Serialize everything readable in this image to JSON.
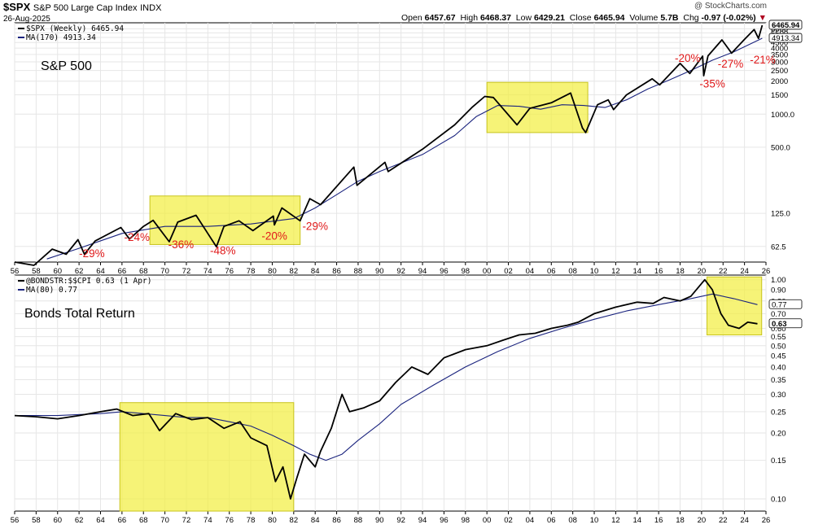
{
  "header": {
    "symbol": "$SPX",
    "name": "S&P 500 Large Cap Index",
    "exchange": "INDX",
    "date": "26-Aug-2025",
    "credit": "@ StockCharts.com",
    "ohlc": [
      {
        "label": "Open",
        "value": "6457.67"
      },
      {
        "label": "High",
        "value": "6468.37"
      },
      {
        "label": "Low",
        "value": "6429.21"
      },
      {
        "label": "Close",
        "value": "6465.94"
      },
      {
        "label": "Volume",
        "value": "5.7B"
      },
      {
        "label": "Chg",
        "value": "-0.97 (-0.02%)"
      }
    ],
    "chg_arrow": "▼",
    "colors": {
      "down": "#b00020"
    }
  },
  "chart_data": [
    {
      "type": "line",
      "title": "S&P 500",
      "legend": [
        "$SPX (Weekly) 6465.94",
        "MA(170) 4913.34"
      ],
      "scale": "log",
      "ylim": [
        45,
        6800
      ],
      "x_range": [
        1956,
        2026
      ],
      "x_tick_labels": [
        "56",
        "58",
        "60",
        "62",
        "64",
        "66",
        "68",
        "70",
        "72",
        "74",
        "76",
        "78",
        "80",
        "82",
        "84",
        "86",
        "88",
        "90",
        "92",
        "94",
        "96",
        "98",
        "00",
        "02",
        "04",
        "06",
        "08",
        "10",
        "12",
        "14",
        "16",
        "18",
        "20",
        "22",
        "24",
        "26"
      ],
      "y_ticks": [
        62.5,
        125,
        500,
        1000,
        1500,
        2000,
        2500,
        3000,
        3500,
        4000,
        4500,
        5000,
        5500,
        6000
      ],
      "y_tick_labels": [
        "62.5",
        "125.0",
        "500.0",
        "1000.0",
        "1500",
        "2000",
        "2500",
        "3000",
        "3500",
        "4000",
        "4500",
        "5000",
        "5500",
        "6000"
      ],
      "last_labels": [
        "6465.94",
        "4913.34"
      ],
      "series": [
        {
          "name": "$SPX (Weekly)",
          "color": "#000000",
          "x": [
            1956,
            1957.8,
            1959.5,
            1960.8,
            1961.9,
            1962.5,
            1963.5,
            1965.9,
            1966.7,
            1968.0,
            1968.9,
            1970.4,
            1971.2,
            1972.9,
            1974.8,
            1975.5,
            1976.9,
            1978.2,
            1980.1,
            1980.2,
            1980.9,
            1982.6,
            1983.5,
            1984.5,
            1987.6,
            1987.9,
            1990.5,
            1990.8,
            1994.0,
            1997.0,
            1998.6,
            1999.8,
            2000.6,
            2002.8,
            2004.0,
            2006.0,
            2007.8,
            2008.9,
            2009.2,
            2010.3,
            2011.3,
            2011.8,
            2013.0,
            2015.4,
            2016.1,
            2018.0,
            2018.9,
            2020.1,
            2020.2,
            2020.6,
            2021.9,
            2022.8,
            2024.0,
            2024.9,
            2025.3,
            2025.65
          ],
          "values": [
            45,
            42,
            59,
            53,
            72,
            53,
            70,
            93,
            73,
            95,
            108,
            69,
            104,
            120,
            62,
            95,
            107,
            87,
            118,
            98,
            140,
            107,
            170,
            150,
            330,
            225,
            365,
            300,
            480,
            800,
            1150,
            1450,
            1420,
            800,
            1130,
            1270,
            1560,
            750,
            680,
            1220,
            1350,
            1100,
            1500,
            2100,
            1850,
            2900,
            2350,
            3380,
            2240,
            3400,
            4750,
            3600,
            4800,
            5900,
            4900,
            6465.94
          ]
        },
        {
          "name": "MA(170)",
          "color": "#1a237e",
          "x": [
            1959,
            1962,
            1966,
            1970,
            1974,
            1978,
            1982,
            1984,
            1986,
            1988,
            1990,
            1994,
            1997,
            1999,
            2001,
            2003,
            2005,
            2007,
            2009,
            2011,
            2013,
            2015,
            2017,
            2019,
            2021,
            2023,
            2025.65
          ],
          "values": [
            48,
            60,
            82,
            95,
            95,
            100,
            112,
            140,
            185,
            245,
            300,
            430,
            640,
            950,
            1200,
            1180,
            1110,
            1220,
            1200,
            1150,
            1350,
            1700,
            2050,
            2500,
            3100,
            3700,
            4913.34
          ]
        }
      ],
      "highlights": [
        {
          "x_start": 1968.6,
          "x_end": 1982.6,
          "y_top": 180,
          "y_bottom": 65
        },
        {
          "x_start": 2000.0,
          "x_end": 2009.4,
          "y_top": 1950,
          "y_bottom": 680
        }
      ],
      "annotations": [
        {
          "text": "-29%",
          "x": 1963.2,
          "y": 50
        },
        {
          "text": "-24%",
          "x": 1967.4,
          "y": 70
        },
        {
          "text": "-36%",
          "x": 1971.5,
          "y": 60
        },
        {
          "text": "-48%",
          "x": 1975.4,
          "y": 53
        },
        {
          "text": "-20%",
          "x": 1980.2,
          "y": 72
        },
        {
          "text": "-29%",
          "x": 1984.0,
          "y": 88
        },
        {
          "text": "-20%",
          "x": 2018.7,
          "y": 3000
        },
        {
          "text": "-35%",
          "x": 2021.0,
          "y": 1750
        },
        {
          "text": "-27%",
          "x": 2022.7,
          "y": 2650
        },
        {
          "text": "-21%",
          "x": 2025.7,
          "y": 2900
        }
      ]
    },
    {
      "type": "line",
      "title": "Bonds Total Return",
      "legend": [
        "@BONDSTR:$$CPI 0.63 (1 Apr)",
        "MA(80) 0.77"
      ],
      "scale": "log",
      "ylim": [
        0.088,
        1.05
      ],
      "x_range": [
        1956,
        2026
      ],
      "x_tick_labels": [
        "56",
        "58",
        "60",
        "62",
        "64",
        "66",
        "68",
        "70",
        "72",
        "74",
        "76",
        "78",
        "80",
        "82",
        "84",
        "86",
        "88",
        "90",
        "92",
        "94",
        "96",
        "98",
        "00",
        "02",
        "04",
        "06",
        "08",
        "10",
        "12",
        "14",
        "16",
        "18",
        "20",
        "22",
        "24",
        "26"
      ],
      "y_ticks": [
        0.1,
        0.15,
        0.2,
        0.25,
        0.3,
        0.35,
        0.4,
        0.45,
        0.5,
        0.55,
        0.6,
        0.7,
        0.8,
        0.9,
        1.0
      ],
      "y_tick_labels": [
        "0.10",
        "0.15",
        "0.20",
        "0.25",
        "0.30",
        "0.35",
        "0.40",
        "0.45",
        "0.50",
        "0.55",
        "0.60",
        "0.70",
        "0.80",
        "0.90",
        "1.00"
      ],
      "last_labels": [
        "0.77",
        "0.63"
      ],
      "series": [
        {
          "name": "@BONDSTR:$$CPI",
          "color": "#000000",
          "x": [
            1956,
            1958,
            1960,
            1962,
            1964,
            1965.5,
            1967,
            1968.5,
            1969.5,
            1971,
            1972.5,
            1974,
            1975.5,
            1977,
            1978,
            1979.5,
            1980.3,
            1981.0,
            1981.7,
            1982.3,
            1983,
            1984,
            1984.5,
            1985.5,
            1986.5,
            1987.2,
            1988.5,
            1990,
            1991.5,
            1993,
            1994.5,
            1996,
            1998,
            2000,
            2001.5,
            2003,
            2004.5,
            2006,
            2007.5,
            2008.5,
            2010,
            2012,
            2014,
            2015.5,
            2016.5,
            2018,
            2019,
            2020.3,
            2021.0,
            2021.8,
            2022.5,
            2023.5,
            2024.3,
            2025.2
          ],
          "values": [
            0.24,
            0.237,
            0.232,
            0.24,
            0.25,
            0.257,
            0.24,
            0.245,
            0.205,
            0.245,
            0.23,
            0.235,
            0.21,
            0.225,
            0.19,
            0.175,
            0.12,
            0.14,
            0.1,
            0.125,
            0.16,
            0.14,
            0.165,
            0.21,
            0.3,
            0.25,
            0.26,
            0.28,
            0.34,
            0.4,
            0.37,
            0.44,
            0.48,
            0.5,
            0.53,
            0.56,
            0.57,
            0.6,
            0.62,
            0.64,
            0.7,
            0.75,
            0.79,
            0.78,
            0.83,
            0.8,
            0.84,
            1.0,
            0.9,
            0.7,
            0.62,
            0.6,
            0.64,
            0.63
          ]
        },
        {
          "name": "MA(80)",
          "color": "#1a237e",
          "x": [
            1956,
            1960,
            1964,
            1966,
            1968,
            1970,
            1972,
            1974,
            1976,
            1978,
            1980,
            1982,
            1983.5,
            1985,
            1986.5,
            1988,
            1990,
            1992,
            1995,
            1998,
            2001,
            2004,
            2007,
            2010,
            2013,
            2016,
            2019,
            2021,
            2023,
            2025.2
          ],
          "values": [
            0.24,
            0.24,
            0.245,
            0.25,
            0.245,
            0.24,
            0.235,
            0.235,
            0.225,
            0.215,
            0.195,
            0.175,
            0.16,
            0.15,
            0.16,
            0.185,
            0.22,
            0.27,
            0.33,
            0.4,
            0.47,
            0.54,
            0.6,
            0.66,
            0.72,
            0.77,
            0.82,
            0.86,
            0.82,
            0.77
          ]
        }
      ],
      "highlights": [
        {
          "x_start": 1965.8,
          "x_end": 1982.0,
          "y_top": 0.275,
          "y_bottom": 0.088
        },
        {
          "x_start": 2020.5,
          "x_end": 2025.6,
          "y_top": 1.03,
          "y_bottom": 0.56
        }
      ]
    }
  ]
}
